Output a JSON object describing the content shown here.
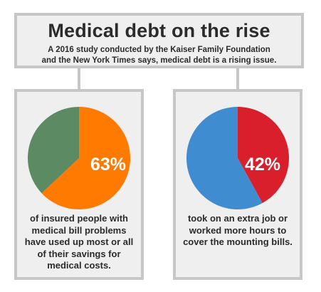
{
  "header": {
    "title": "Medical debt on the rise",
    "subtitle_line1": "A 2016 study conducted by the Kaiser Family Foundation",
    "subtitle_line2": "and the New York Times says, medical debt is a rising issue."
  },
  "chart_data": [
    {
      "type": "pie",
      "values": [
        63,
        37
      ],
      "colors": [
        "#ff7a00",
        "#5c8b63"
      ],
      "label": "63%",
      "caption": "of insured people with medical bill problems have used up most or all of their savings for medical costs."
    },
    {
      "type": "pie",
      "values": [
        42,
        58
      ],
      "colors": [
        "#d81f2b",
        "#3f8cd1"
      ],
      "label": "42%",
      "caption": "took on an extra job or worked more hours to cover the mounting bills."
    }
  ]
}
